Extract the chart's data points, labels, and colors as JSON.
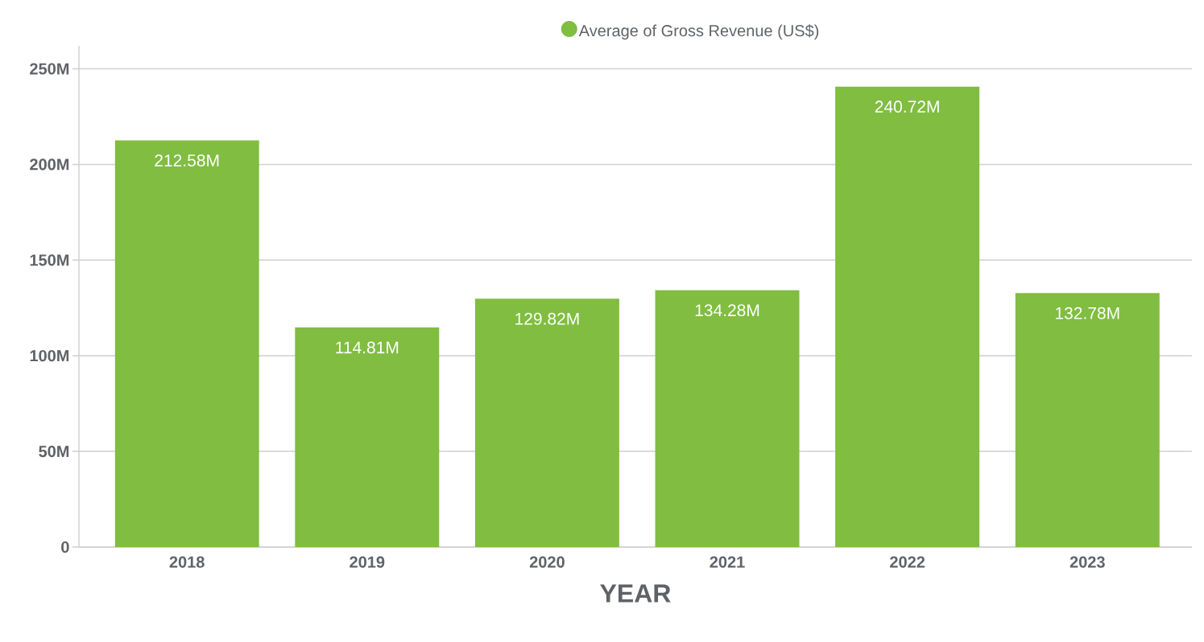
{
  "chart_data": {
    "type": "bar",
    "xlabel": "YEAR",
    "categories": [
      "2018",
      "2019",
      "2020",
      "2021",
      "2022",
      "2023"
    ],
    "series": [
      {
        "name": "Average of Gross Revenue (US$)",
        "color": "#80bd41",
        "values": [
          212580000,
          114810000,
          129820000,
          134280000,
          240720000,
          132780000
        ],
        "value_labels": [
          "212.58M",
          "114.81M",
          "129.82M",
          "134.28M",
          "240.72M",
          "132.78M"
        ]
      }
    ],
    "ylim": [
      0,
      262000000
    ],
    "yticks": [
      {
        "value": 0,
        "label": "0"
      },
      {
        "value": 50000000,
        "label": "50M"
      },
      {
        "value": 100000000,
        "label": "100M"
      },
      {
        "value": 150000000,
        "label": "150M"
      },
      {
        "value": 200000000,
        "label": "200M"
      },
      {
        "value": 250000000,
        "label": "250M"
      }
    ],
    "grid": "y",
    "legend": "top"
  }
}
